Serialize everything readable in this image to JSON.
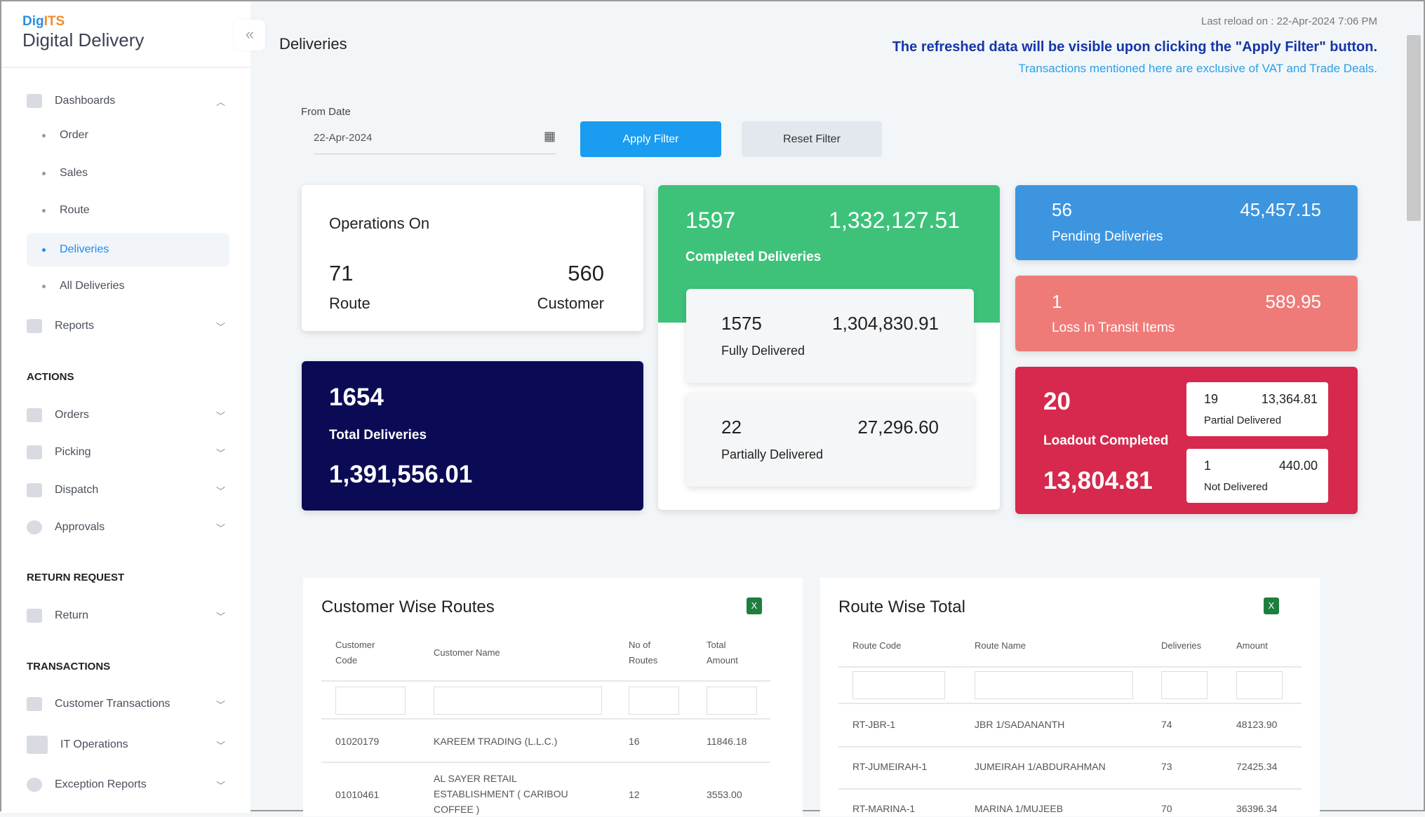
{
  "app": {
    "brand_top": "DigITS",
    "brand_top_a": "Dig",
    "brand_top_b": "ITS",
    "brand_name": "Digital Delivery"
  },
  "sidebar": {
    "dashboards": "Dashboards",
    "sub": [
      "Order",
      "Sales",
      "Route",
      "Deliveries",
      "All Deliveries"
    ],
    "reports": "Reports",
    "actions_title": "ACTIONS",
    "actions": [
      "Orders",
      "Picking",
      "Dispatch",
      "Approvals"
    ],
    "return_title": "RETURN REQUEST",
    "return": "Return",
    "transactions_title": "TRANSACTIONS",
    "transactions": [
      "Customer Transactions",
      "IT Operations",
      "Exception Reports"
    ]
  },
  "header": {
    "title": "Deliveries",
    "last_reload": "Last reload on :  22-Apr-2024 7:06 PM",
    "notice": "The refreshed data will be visible upon clicking the \"Apply Filter\" button.",
    "vat_note": "Transactions mentioned here are exclusive of VAT and Trade Deals."
  },
  "filter": {
    "from_label": "From Date",
    "from_value": "22-Apr-2024",
    "apply": "Apply Filter",
    "reset": "Reset Filter"
  },
  "cards": {
    "operations": {
      "title": "Operations On",
      "route_count": "71",
      "route_label": "Route",
      "customer_count": "560",
      "customer_label": "Customer"
    },
    "total": {
      "count": "1654",
      "label": "Total Deliveries",
      "amount": "1,391,556.01"
    },
    "completed": {
      "count": "1597",
      "amount": "1,332,127.51",
      "label": "Completed Deliveries"
    },
    "fully": {
      "count": "1575",
      "amount": "1,304,830.91",
      "label": "Fully Delivered"
    },
    "partially": {
      "count": "22",
      "amount": "27,296.60",
      "label": "Partially Delivered"
    },
    "pending": {
      "count": "56",
      "amount": "45,457.15",
      "label": "Pending Deliveries"
    },
    "loss": {
      "count": "1",
      "amount": "589.95",
      "label": "Loss In Transit Items"
    },
    "loadout": {
      "count": "20",
      "label": "Loadout Completed",
      "amount": "13,804.81"
    },
    "partial_delivered": {
      "count": "19",
      "amount": "13,364.81",
      "label": "Partial Delivered"
    },
    "not_delivered": {
      "count": "1",
      "amount": "440.00",
      "label": "Not Delivered"
    }
  },
  "colors": {
    "green": "#3ec27a",
    "navy": "#0b0b55",
    "blue": "#3d95e0",
    "salmon": "#ef7b78",
    "crimson": "#d6294d"
  },
  "customer_table": {
    "title": "Customer Wise Routes",
    "headers": [
      "Customer Code",
      "Customer Name",
      "No of Routes",
      "Total Amount"
    ],
    "rows": [
      [
        "01020179",
        "KAREEM TRADING (L.L.C.)",
        "16",
        "11846.18"
      ],
      [
        "01010461",
        "AL SAYER RETAIL ESTABLISHMENT ( CARIBOU COFFEE )",
        "12",
        "3553.00"
      ]
    ]
  },
  "route_table": {
    "title": "Route Wise Total",
    "headers": [
      "Route Code",
      "Route Name",
      "Deliveries",
      "Amount"
    ],
    "rows": [
      [
        "RT-JBR-1",
        "JBR 1/SADANANTH",
        "74",
        "48123.90"
      ],
      [
        "RT-JUMEIRAH-1",
        "JUMEIRAH 1/ABDURAHMAN",
        "73",
        "72425.34"
      ],
      [
        "RT-MARINA-1",
        "MARINA 1/MUJEEB",
        "70",
        "36396.34"
      ]
    ]
  }
}
